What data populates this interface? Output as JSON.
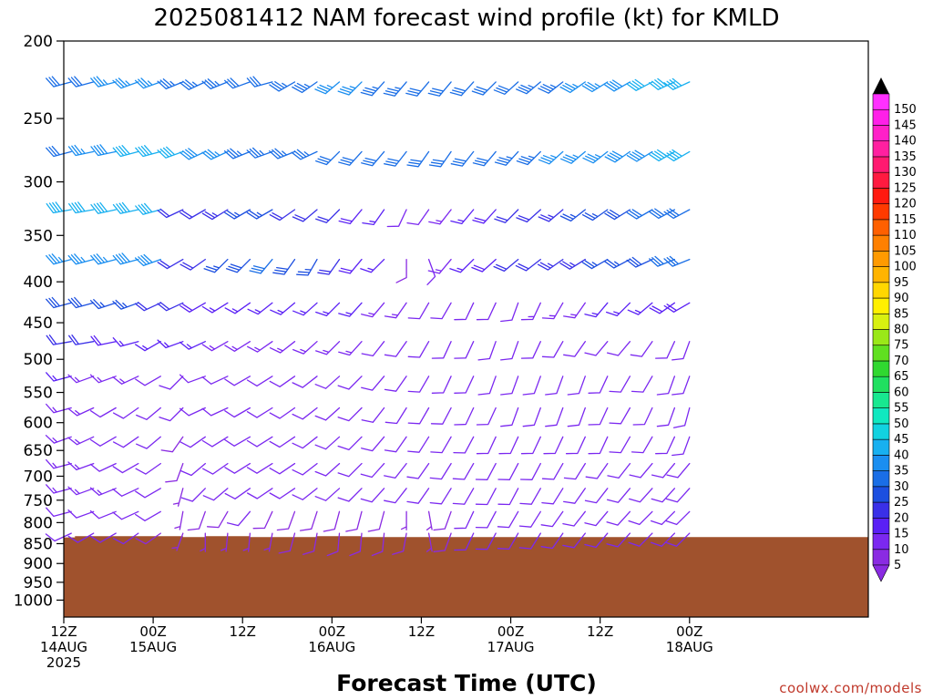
{
  "chart_data": {
    "type": "wind-barb profile",
    "title": "2025081412 NAM forecast wind profile (kt) for KMLD",
    "xlabel": "Forecast Time (UTC)",
    "ylabel": "",
    "credit": "coolwx.com/models",
    "y_scale": "log",
    "ylim": [
      1050,
      200
    ],
    "y_ticks": [
      "200",
      "250",
      "300",
      "350",
      "400",
      "450",
      "500",
      "550",
      "600",
      "650",
      "700",
      "750",
      "800",
      "850",
      "900",
      "950",
      "1000"
    ],
    "x_hours": [
      0,
      108
    ],
    "x_ticks": [
      {
        "hour": 0,
        "line1": "12Z",
        "line2": "14AUG",
        "line3": "2025"
      },
      {
        "hour": 12,
        "line1": "00Z",
        "line2": "15AUG",
        "line3": ""
      },
      {
        "hour": 24,
        "line1": "12Z",
        "line2": "",
        "line3": ""
      },
      {
        "hour": 36,
        "line1": "00Z",
        "line2": "16AUG",
        "line3": ""
      },
      {
        "hour": 48,
        "line1": "12Z",
        "line2": "",
        "line3": ""
      },
      {
        "hour": 60,
        "line1": "00Z",
        "line2": "17AUG",
        "line3": ""
      },
      {
        "hour": 72,
        "line1": "12Z",
        "line2": "",
        "line3": ""
      },
      {
        "hour": 84,
        "line1": "00Z",
        "line2": "18AUG",
        "line3": ""
      }
    ],
    "ground_color": "#a0522d",
    "surface_pressure": [
      {
        "hour": 0,
        "p": 835
      },
      {
        "hour": 1.5,
        "p": 832
      },
      {
        "hour": 15.5,
        "p": 832
      },
      {
        "hour": 16,
        "p": 834
      },
      {
        "hour": 18,
        "p": 834
      },
      {
        "hour": 19,
        "p": 832
      },
      {
        "hour": 24.5,
        "p": 832
      },
      {
        "hour": 25,
        "p": 834
      },
      {
        "hour": 33,
        "p": 834
      },
      {
        "hour": 34,
        "p": 832
      },
      {
        "hour": 39.5,
        "p": 832
      },
      {
        "hour": 40,
        "p": 834
      },
      {
        "hour": 84,
        "p": 834
      }
    ],
    "barb_levels": [
      225,
      275,
      325,
      375,
      425,
      475,
      525,
      575,
      625,
      675,
      725,
      775,
      825
    ],
    "barb_hours": [
      1,
      4,
      7,
      10,
      13,
      16,
      19,
      22,
      25,
      28,
      31,
      34,
      37,
      40,
      43,
      46,
      49,
      52,
      55,
      58,
      61,
      64,
      67,
      70,
      73,
      76,
      79,
      82,
      84
    ],
    "level_profiles": [
      {
        "p": 225,
        "dir": [
          255,
          255,
          255,
          250,
          250,
          248,
          245,
          248,
          250,
          255,
          240,
          235,
          230,
          225,
          222,
          220,
          220,
          220,
          222,
          225,
          228,
          230,
          232,
          235,
          238,
          240,
          242,
          245,
          245
        ],
        "spd": [
          30,
          32,
          35,
          35,
          35,
          34,
          33,
          33,
          32,
          32,
          33,
          34,
          35,
          35,
          34,
          33,
          32,
          31,
          30,
          31,
          32,
          33,
          34,
          35,
          36,
          38,
          40,
          42,
          42
        ]
      },
      {
        "p": 275,
        "dir": [
          255,
          258,
          258,
          255,
          255,
          250,
          245,
          245,
          248,
          250,
          248,
          245,
          225,
          222,
          220,
          218,
          215,
          215,
          218,
          220,
          222,
          225,
          228,
          230,
          232,
          235,
          238,
          240,
          240
        ],
        "spd": [
          32,
          35,
          38,
          40,
          40,
          42,
          38,
          35,
          34,
          33,
          33,
          33,
          32,
          32,
          31,
          30,
          30,
          30,
          31,
          32,
          33,
          34,
          35,
          36,
          37,
          38,
          39,
          40,
          40
        ]
      },
      {
        "p": 325,
        "dir": [
          260,
          260,
          258,
          258,
          255,
          245,
          240,
          238,
          240,
          240,
          235,
          230,
          225,
          220,
          215,
          205,
          215,
          218,
          220,
          222,
          225,
          228,
          230,
          232,
          235,
          238,
          240,
          242,
          242
        ],
        "spd": [
          40,
          40,
          42,
          42,
          42,
          22,
          22,
          24,
          26,
          26,
          22,
          22,
          22,
          18,
          15,
          10,
          12,
          14,
          16,
          18,
          20,
          22,
          24,
          25,
          26,
          28,
          30,
          32,
          32
        ]
      },
      {
        "p": 375,
        "dir": [
          255,
          255,
          255,
          255,
          250,
          240,
          235,
          225,
          225,
          220,
          215,
          210,
          215,
          220,
          225,
          180,
          160,
          220,
          225,
          228,
          230,
          232,
          235,
          238,
          240,
          242,
          245,
          248,
          248
        ],
        "spd": [
          35,
          35,
          36,
          38,
          38,
          22,
          22,
          25,
          28,
          30,
          28,
          25,
          22,
          18,
          15,
          8,
          10,
          14,
          16,
          18,
          20,
          22,
          23,
          24,
          25,
          26,
          28,
          30,
          30
        ]
      },
      {
        "p": 425,
        "dir": [
          255,
          255,
          252,
          250,
          245,
          245,
          240,
          238,
          235,
          232,
          230,
          228,
          225,
          222,
          220,
          215,
          210,
          210,
          205,
          205,
          200,
          205,
          210,
          215,
          220,
          225,
          230,
          235,
          240
        ],
        "spd": [
          28,
          28,
          26,
          25,
          22,
          20,
          18,
          17,
          17,
          17,
          16,
          16,
          15,
          15,
          14,
          13,
          12,
          12,
          12,
          12,
          12,
          13,
          14,
          14,
          15,
          16,
          17,
          18,
          18
        ]
      },
      {
        "p": 475,
        "dir": [
          260,
          260,
          258,
          255,
          240,
          250,
          245,
          240,
          238,
          235,
          232,
          228,
          225,
          222,
          218,
          215,
          210,
          205,
          205,
          200,
          200,
          205,
          210,
          215,
          220,
          220,
          215,
          205,
          200
        ],
        "spd": [
          20,
          20,
          18,
          17,
          16,
          15,
          15,
          14,
          14,
          14,
          14,
          13,
          13,
          13,
          12,
          12,
          12,
          12,
          12,
          12,
          11,
          11,
          11,
          11,
          12,
          12,
          12,
          12,
          12
        ]
      },
      {
        "p": 525,
        "dir": [
          255,
          250,
          250,
          245,
          240,
          225,
          250,
          245,
          240,
          238,
          235,
          232,
          228,
          225,
          220,
          215,
          210,
          205,
          205,
          200,
          200,
          200,
          200,
          200,
          205,
          210,
          210,
          200,
          200
        ],
        "spd": [
          15,
          14,
          13,
          13,
          12,
          12,
          12,
          12,
          12,
          12,
          11,
          11,
          11,
          10,
          10,
          10,
          10,
          10,
          10,
          10,
          10,
          10,
          10,
          10,
          10,
          10,
          10,
          10,
          10
        ]
      },
      {
        "p": 575,
        "dir": [
          255,
          245,
          240,
          235,
          230,
          225,
          245,
          245,
          240,
          238,
          235,
          232,
          228,
          225,
          218,
          212,
          210,
          208,
          205,
          205,
          200,
          200,
          200,
          200,
          205,
          210,
          205,
          200,
          195
        ],
        "spd": [
          14,
          13,
          12,
          11,
          10,
          10,
          11,
          11,
          11,
          11,
          11,
          11,
          11,
          10,
          10,
          10,
          10,
          10,
          10,
          10,
          10,
          10,
          10,
          10,
          10,
          10,
          10,
          10,
          10
        ]
      },
      {
        "p": 625,
        "dir": [
          250,
          245,
          240,
          235,
          230,
          215,
          235,
          238,
          240,
          238,
          236,
          232,
          228,
          225,
          220,
          215,
          212,
          210,
          208,
          205,
          205,
          205,
          205,
          205,
          205,
          210,
          210,
          205,
          200
        ],
        "spd": [
          14,
          13,
          12,
          11,
          10,
          9,
          10,
          11,
          11,
          11,
          11,
          11,
          11,
          10,
          10,
          10,
          10,
          10,
          10,
          10,
          10,
          10,
          10,
          10,
          10,
          10,
          10,
          10,
          10
        ]
      },
      {
        "p": 675,
        "dir": [
          255,
          250,
          245,
          240,
          235,
          200,
          230,
          235,
          238,
          238,
          236,
          232,
          228,
          225,
          222,
          218,
          215,
          212,
          210,
          208,
          208,
          208,
          210,
          212,
          215,
          218,
          220,
          220,
          220
        ],
        "spd": [
          14,
          13,
          12,
          12,
          11,
          8,
          10,
          11,
          12,
          12,
          12,
          12,
          12,
          12,
          11,
          11,
          11,
          11,
          11,
          11,
          11,
          11,
          11,
          11,
          11,
          12,
          12,
          12,
          12
        ]
      },
      {
        "p": 725,
        "dir": [
          255,
          250,
          248,
          245,
          240,
          195,
          225,
          230,
          235,
          236,
          236,
          232,
          228,
          225,
          222,
          218,
          215,
          212,
          210,
          208,
          208,
          210,
          212,
          215,
          218,
          220,
          222,
          222,
          222
        ],
        "spd": [
          14,
          13,
          13,
          12,
          12,
          7,
          10,
          11,
          12,
          12,
          12,
          12,
          12,
          12,
          12,
          11,
          11,
          11,
          11,
          11,
          11,
          11,
          11,
          11,
          11,
          12,
          12,
          12,
          12
        ]
      },
      {
        "p": 775,
        "dir": [
          255,
          250,
          248,
          245,
          240,
          190,
          200,
          210,
          220,
          205,
          200,
          198,
          195,
          195,
          195,
          180,
          170,
          200,
          205,
          208,
          210,
          212,
          215,
          218,
          220,
          222,
          225,
          225,
          225
        ],
        "spd": [
          12,
          12,
          12,
          12,
          11,
          6,
          8,
          9,
          10,
          9,
          8,
          8,
          8,
          8,
          8,
          7,
          6,
          9,
          10,
          10,
          10,
          10,
          10,
          10,
          11,
          11,
          11,
          11,
          11
        ]
      },
      {
        "p": 825,
        "dir": [
          245,
          240,
          240,
          235,
          235,
          200,
          180,
          185,
          185,
          190,
          195,
          190,
          185,
          185,
          185,
          190,
          170,
          200,
          205,
          208,
          210,
          212,
          215,
          218,
          220,
          222,
          225,
          225,
          225
        ],
        "spd": [
          10,
          10,
          10,
          10,
          9,
          6,
          6,
          6,
          6,
          7,
          8,
          8,
          8,
          8,
          8,
          8,
          6,
          9,
          10,
          10,
          10,
          10,
          10,
          10,
          10,
          11,
          11,
          11,
          11
        ]
      }
    ],
    "colorbar": {
      "ticks": [
        "5",
        "10",
        "15",
        "20",
        "25",
        "30",
        "35",
        "40",
        "45",
        "50",
        "55",
        "60",
        "65",
        "70",
        "75",
        "80",
        "85",
        "90",
        "95",
        "100",
        "105",
        "110",
        "115",
        "120",
        "125",
        "130",
        "135",
        "140",
        "145",
        "150"
      ],
      "colors": [
        "#8a2be2",
        "#7b28f0",
        "#5a20f5",
        "#3a30e8",
        "#1c4fe0",
        "#1a6ee6",
        "#1a8ef0",
        "#18b0f0",
        "#12d2e0",
        "#10e8c0",
        "#18e890",
        "#20e060",
        "#30d830",
        "#60e020",
        "#9ae818",
        "#d8f010",
        "#fff000",
        "#ffd700",
        "#ffb400",
        "#ff9a00",
        "#ff8000",
        "#ff6000",
        "#ff3a00",
        "#ff1a10",
        "#ff1a40",
        "#ff1a70",
        "#ff20a0",
        "#ff20c8",
        "#ff20e8",
        "#ff30ff"
      ]
    }
  }
}
